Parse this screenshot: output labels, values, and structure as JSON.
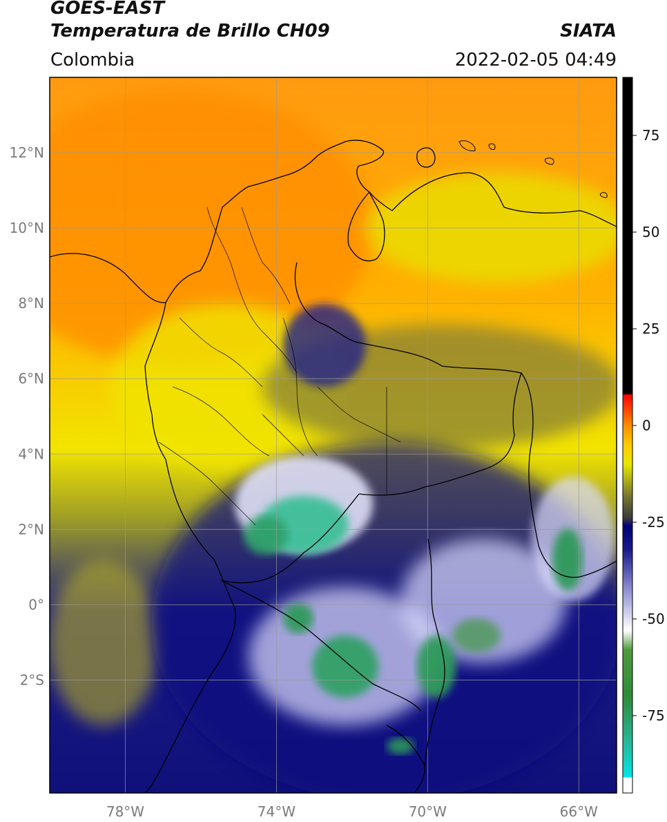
{
  "header": {
    "line1": "GOES-EAST",
    "line2": "Temperatura de Brillo CH09",
    "brand": "SIATA",
    "region": "Colombia",
    "datetime": "2022-02-05 04:49"
  },
  "map": {
    "lon_range": [
      -80,
      -65
    ],
    "lat_range": [
      -5,
      14
    ],
    "lon_ticks": [
      {
        "value": -78,
        "label": "78°W"
      },
      {
        "value": -74,
        "label": "74°W"
      },
      {
        "value": -70,
        "label": "70°W"
      },
      {
        "value": -66,
        "label": "66°W"
      }
    ],
    "lat_ticks": [
      {
        "value": 12,
        "label": "12°N"
      },
      {
        "value": 10,
        "label": "10°N"
      },
      {
        "value": 8,
        "label": "8°N"
      },
      {
        "value": 6,
        "label": "6°N"
      },
      {
        "value": 4,
        "label": "4°N"
      },
      {
        "value": 2,
        "label": "2°N"
      },
      {
        "value": 0,
        "label": "0°"
      },
      {
        "value": -2,
        "label": "2°S"
      }
    ],
    "grid": true
  },
  "colorbar": {
    "range": [
      -95,
      90
    ],
    "ticks": [
      {
        "value": 75,
        "label": "75"
      },
      {
        "value": 50,
        "label": "50"
      },
      {
        "value": 25,
        "label": "25"
      },
      {
        "value": 0,
        "label": "0"
      },
      {
        "value": -25,
        "label": "-25"
      },
      {
        "value": -50,
        "label": "-50"
      },
      {
        "value": -75,
        "label": "-75"
      }
    ],
    "stops": [
      {
        "value": -95,
        "color": "#ffffff"
      },
      {
        "value": -91,
        "color": "#ffffff"
      },
      {
        "value": -90.9,
        "color": "#00e6e6"
      },
      {
        "value": -82,
        "color": "#27b89a"
      },
      {
        "value": -70,
        "color": "#2e8b3a"
      },
      {
        "value": -58,
        "color": "#4f9a3a"
      },
      {
        "value": -53,
        "color": "#ffffff"
      },
      {
        "value": -42,
        "color": "#8a8ad0"
      },
      {
        "value": -32,
        "color": "#1a1a8c"
      },
      {
        "value": -26,
        "color": "#00007a"
      },
      {
        "value": -24,
        "color": "#3a3a3a"
      },
      {
        "value": -18,
        "color": "#7a7a30"
      },
      {
        "value": -10,
        "color": "#e6e600"
      },
      {
        "value": -5,
        "color": "#ffcc00"
      },
      {
        "value": 0,
        "color": "#ff8c00"
      },
      {
        "value": 8,
        "color": "#ff0000"
      },
      {
        "value": 8.1,
        "color": "#000000"
      },
      {
        "value": 90,
        "color": "#000000"
      }
    ]
  }
}
